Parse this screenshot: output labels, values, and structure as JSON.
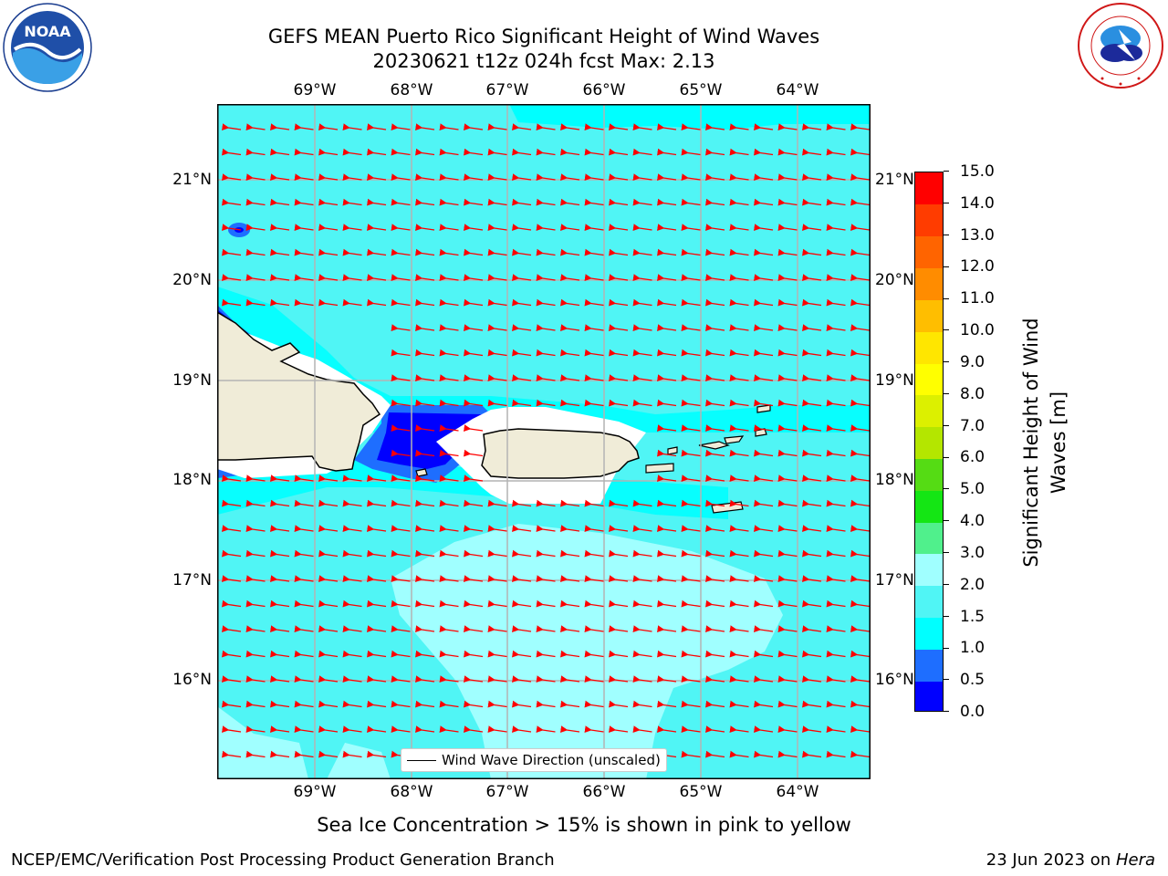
{
  "title": {
    "line1": "GEFS MEAN Puerto Rico Significant Height of Wind Waves",
    "line2": "20230621 t12z 024h fcst   Max: 2.13"
  },
  "map": {
    "lon_labels": [
      "69°W",
      "68°W",
      "67°W",
      "66°W",
      "65°W",
      "64°W"
    ],
    "lat_labels": [
      "21°N",
      "20°N",
      "19°N",
      "18°N",
      "17°N",
      "16°N"
    ],
    "legend_label": "Wind Wave Direction (unscaled)",
    "arrow_color": "#ff0000"
  },
  "colorbar": {
    "label_line1": "Significant Height of Wind",
    "label_line2": "Waves [m]",
    "ticks": [
      "0.0",
      "0.5",
      "1.0",
      "1.5",
      "2.0",
      "3.0",
      "4.0",
      "5.0",
      "6.0",
      "7.0",
      "8.0",
      "9.0",
      "10.0",
      "11.0",
      "12.0",
      "13.0",
      "14.0",
      "15.0"
    ],
    "colors": [
      "#0000ff",
      "#1e6eff",
      "#00ffff",
      "#50f5f5",
      "#a0ffff",
      "#50f08c",
      "#14e614",
      "#55dc14",
      "#b4e600",
      "#dcf000",
      "#ffff00",
      "#ffe600",
      "#ffbe00",
      "#ff8c00",
      "#ff6400",
      "#ff3c00",
      "#ff0000"
    ]
  },
  "caption": "Sea Ice Concentration > 15% is shown in pink to yellow",
  "footer": {
    "left": "NCEP/EMC/Verification Post Processing Product Generation Branch",
    "right_date": "23 Jun 2023 on ",
    "right_host": "Hera"
  },
  "logos": {
    "noaa_text": "NOAA",
    "nws_text": "NATIONAL WEATHER SERVICE"
  }
}
